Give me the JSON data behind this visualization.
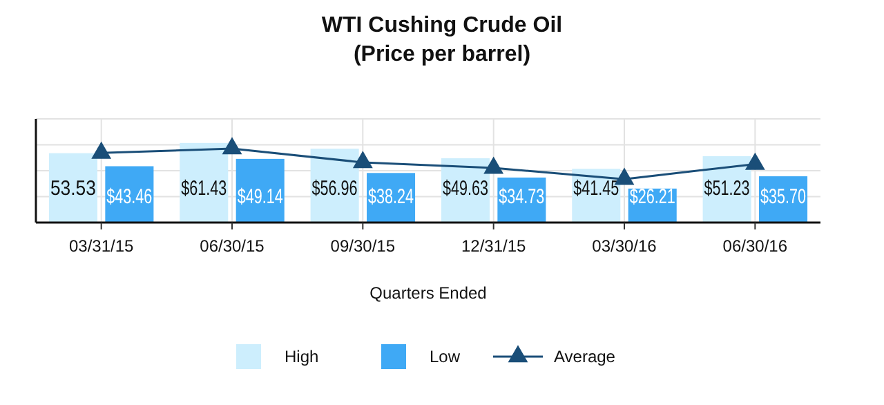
{
  "chart_data": {
    "type": "bar",
    "title": "WTI Cushing Crude Oil\n(Price per barrel)",
    "xlabel": "Quarters Ended",
    "categories": [
      "03/31/15",
      "06/30/15",
      "09/30/15",
      "12/31/15",
      "03/30/16",
      "06/30/16"
    ],
    "series": [
      {
        "name": "High",
        "color": "#cdeefd",
        "values": [
          53.53,
          61.43,
          56.96,
          49.63,
          41.45,
          51.23
        ],
        "value_labels": [
          "53.53",
          "$61.43",
          "$56.96",
          "$49.63",
          "$41.45",
          "$51.23"
        ]
      },
      {
        "name": "Low",
        "color": "#3fa9f5",
        "values": [
          43.46,
          49.14,
          38.24,
          34.73,
          26.21,
          35.7
        ],
        "value_labels": [
          "$43.46",
          "$49.14",
          "$38.24",
          "$34.73",
          "$26.21",
          "$35.70"
        ]
      },
      {
        "name": "Average",
        "type": "line",
        "color": "#1a4e78",
        "marker": "triangle",
        "values": [
          53.7,
          57.1,
          46.4,
          42.1,
          33.5,
          45.1
        ]
      }
    ],
    "ylim": [
      0,
      80
    ],
    "yticks": [
      {
        "value": 0,
        "label": null
      },
      {
        "value": 20,
        "label": null
      },
      {
        "value": 40,
        "label": null
      },
      {
        "value": 60,
        "label": null
      },
      {
        "value": 80,
        "label": null
      }
    ],
    "grid": true,
    "tick_labels": "x",
    "legend": "bottom"
  }
}
